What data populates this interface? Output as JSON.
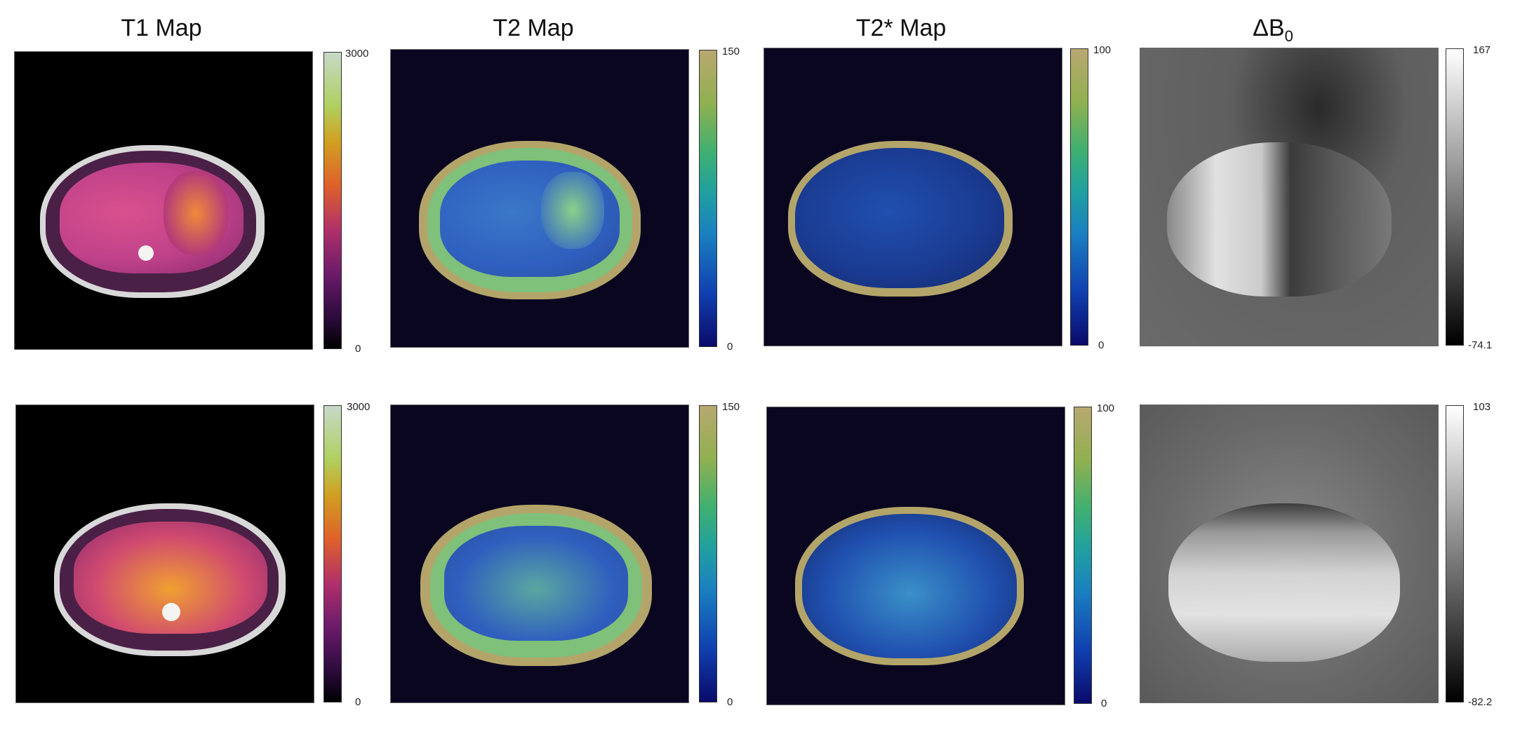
{
  "columns": [
    {
      "title": "T1 Map",
      "title_main": "T1 Map"
    },
    {
      "title": "T2 Map",
      "title_main": "T2 Map"
    },
    {
      "title": "T2* Map",
      "title_main": "T2* Map"
    },
    {
      "title": "ΔB0",
      "title_main": "ΔB",
      "title_sub": "0"
    }
  ],
  "rows": [
    {
      "maps": [
        {
          "cmap": "t1",
          "cbar_max": "3000",
          "cbar_min": "0"
        },
        {
          "cmap": "t2",
          "cbar_max": "150",
          "cbar_min": "0"
        },
        {
          "cmap": "t2",
          "cbar_max": "100",
          "cbar_min": "0"
        },
        {
          "cmap": "gray",
          "cbar_max": "167",
          "cbar_min": "-74.1"
        }
      ]
    },
    {
      "maps": [
        {
          "cmap": "t1",
          "cbar_max": "3000",
          "cbar_min": "0"
        },
        {
          "cmap": "t2",
          "cbar_max": "150",
          "cbar_min": "0"
        },
        {
          "cmap": "t2",
          "cbar_max": "100",
          "cbar_min": "0"
        },
        {
          "cmap": "gray",
          "cbar_max": "103",
          "cbar_min": "-82.2"
        }
      ]
    }
  ],
  "colors": {
    "t1_background": "#000000",
    "t2_background": "#0b0620",
    "gray_background": "#5f5f5f",
    "t1_tissue": "#c0428a",
    "t1_rim": "#3a1a3a",
    "t2_tissue": "#2f5fbf",
    "t2_rim": "#b3a56a",
    "t2_fat": "#7fc07a"
  }
}
